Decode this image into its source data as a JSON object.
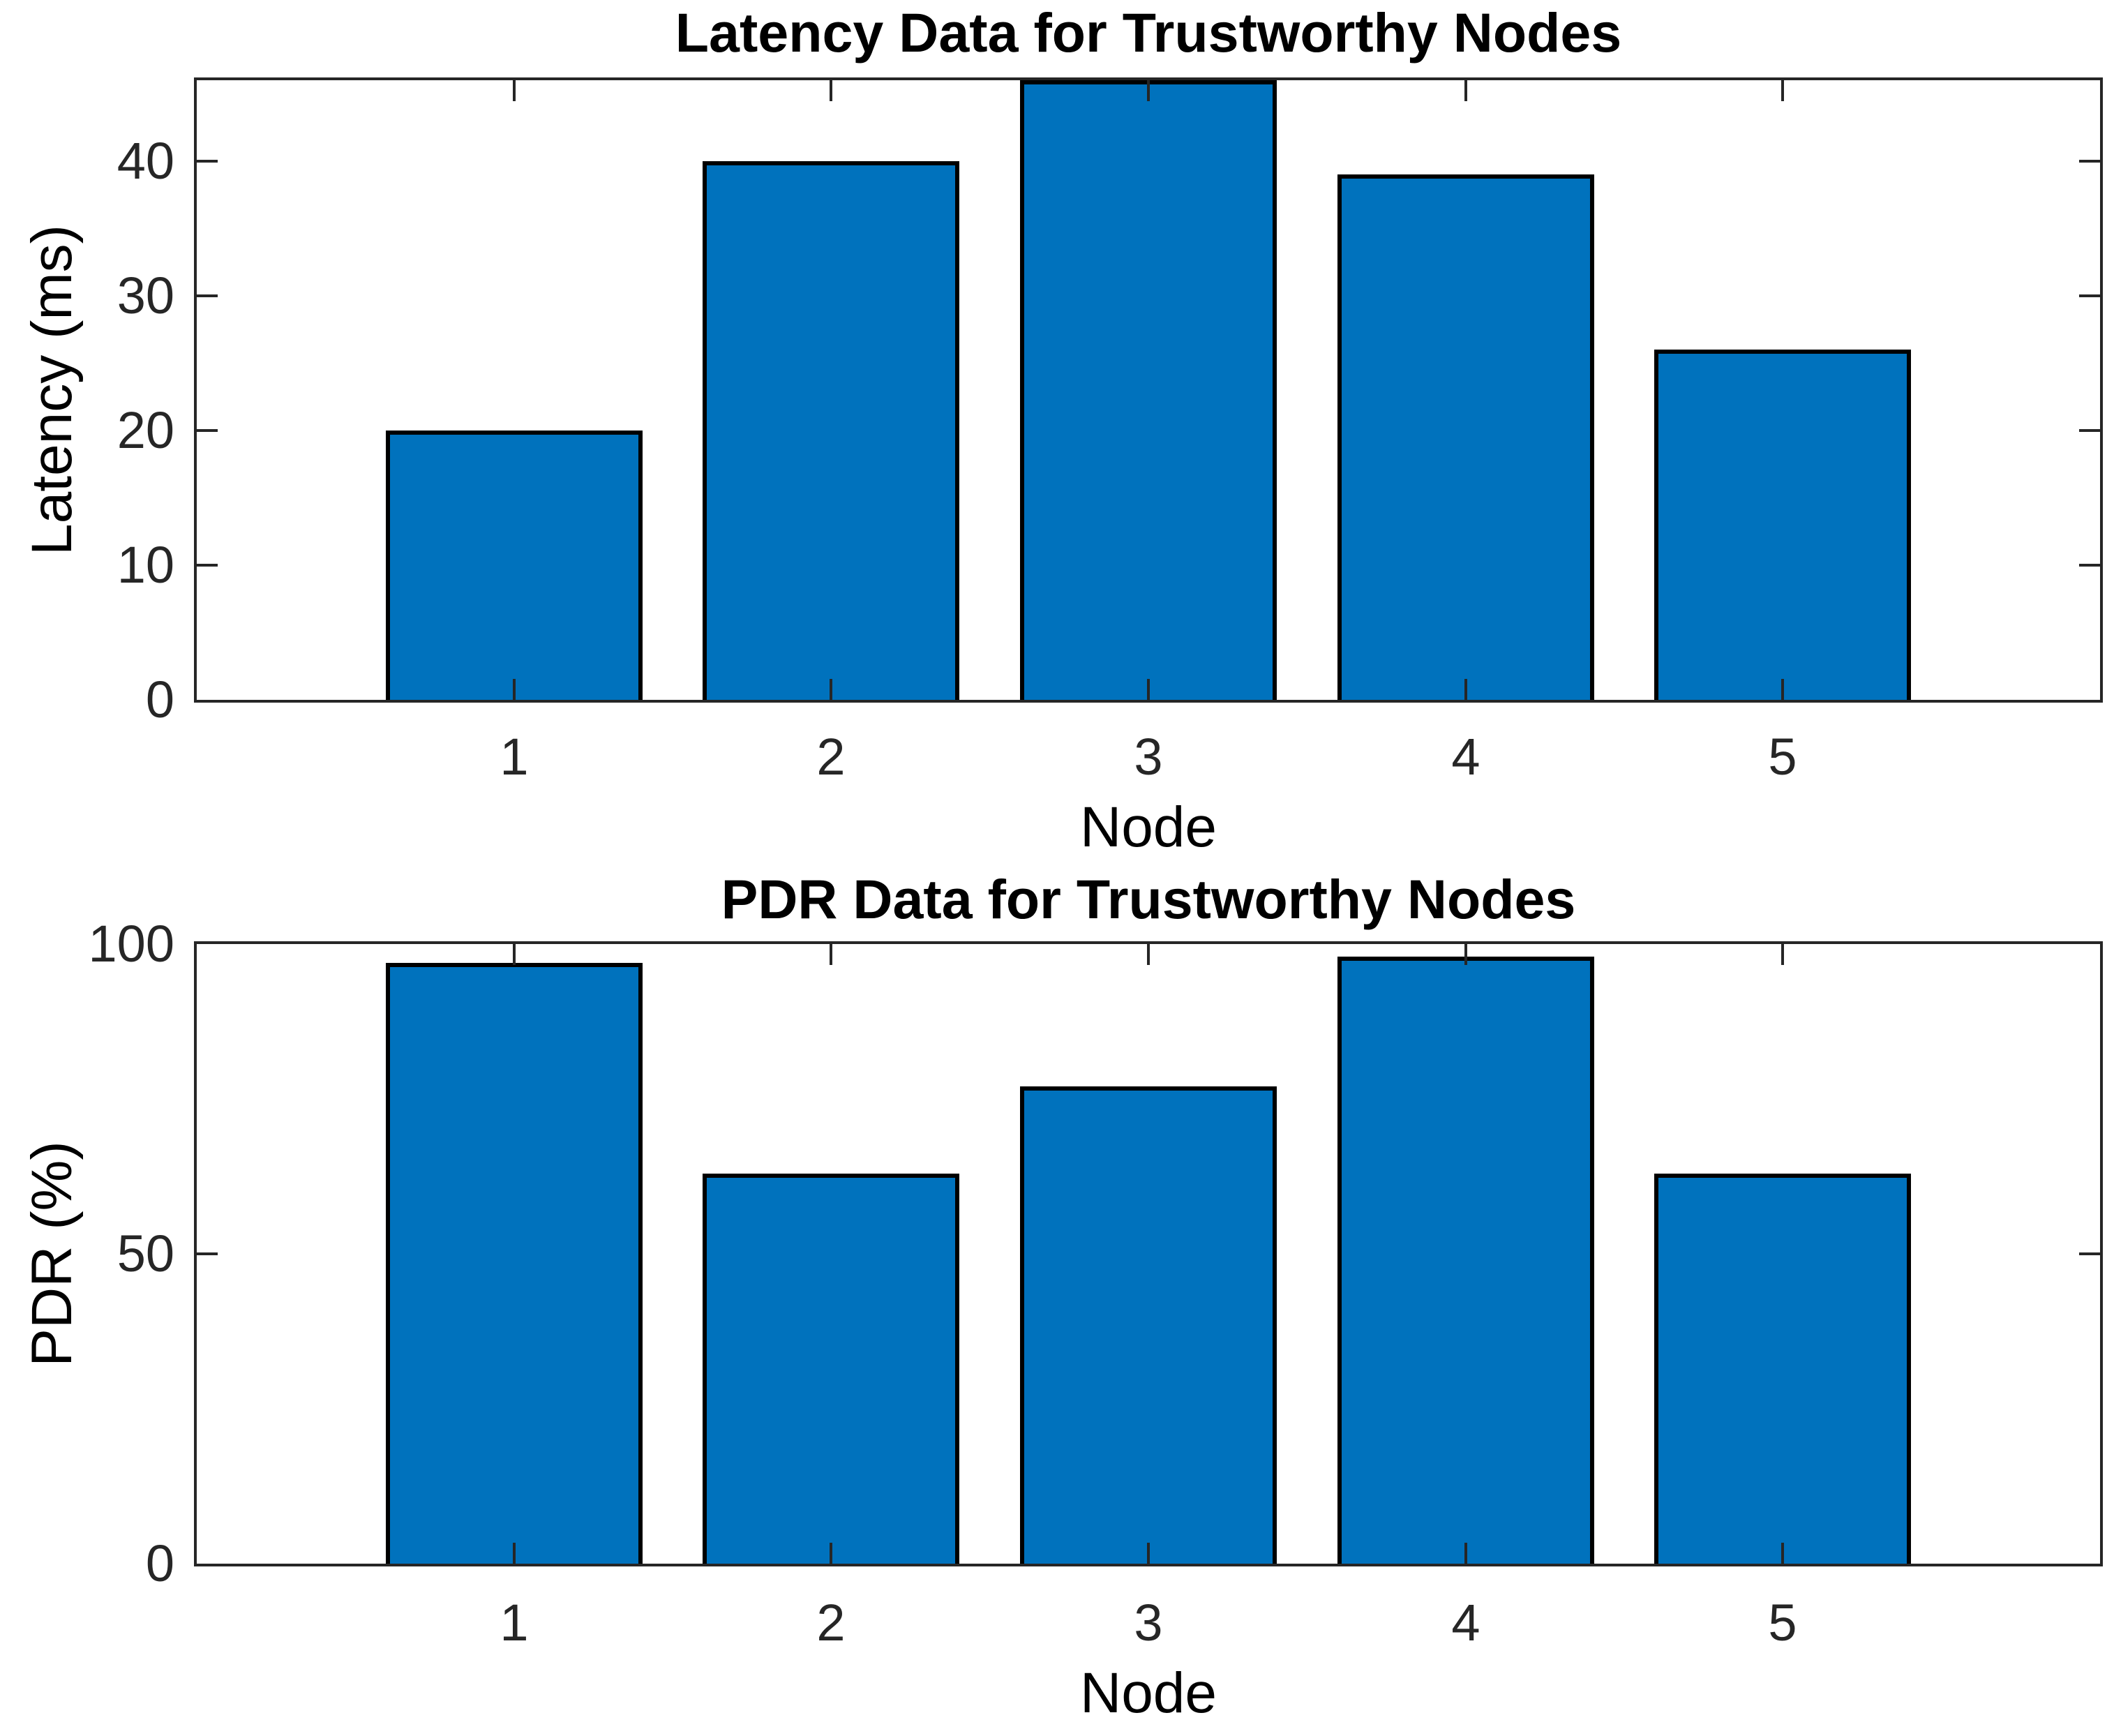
{
  "figure": {
    "background_color": "#ffffff",
    "bar_face_color": "#0072BD",
    "bar_edge_color": "#000000",
    "axes_color": "#262626",
    "text_color": "#000000"
  },
  "chart_data": [
    {
      "type": "bar",
      "title": "Latency Data for Trustworthy Nodes",
      "xlabel": "Node",
      "ylabel": "Latency (ms)",
      "categories": [
        1,
        2,
        3,
        4,
        5
      ],
      "values": [
        20,
        40,
        46,
        39,
        26
      ],
      "xlim": [
        0,
        6
      ],
      "ylim": [
        0,
        46
      ],
      "yticks": [
        0,
        10,
        20,
        30,
        40
      ],
      "xticks": [
        1,
        2,
        3,
        4,
        5
      ],
      "bar_width": 0.81,
      "grid": false,
      "legend": null
    },
    {
      "type": "bar",
      "title": "PDR Data for Trustworthy Nodes",
      "xlabel": "Node",
      "ylabel": "PDR (%)",
      "categories": [
        1,
        2,
        3,
        4,
        5
      ],
      "values": [
        97,
        63,
        77,
        98,
        63
      ],
      "xlim": [
        0,
        6
      ],
      "ylim": [
        0,
        100
      ],
      "yticks": [
        0,
        50,
        100
      ],
      "xticks": [
        1,
        2,
        3,
        4,
        5
      ],
      "bar_width": 0.81,
      "grid": false,
      "legend": null
    }
  ]
}
